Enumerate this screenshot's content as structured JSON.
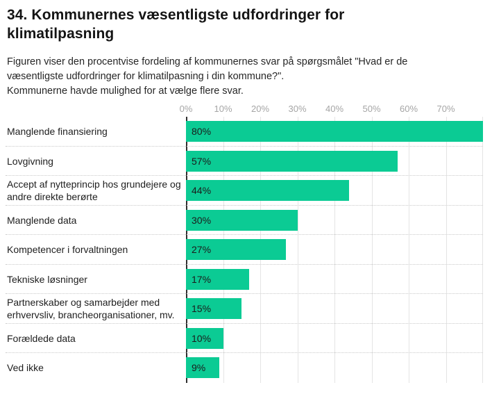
{
  "header": {
    "title_lines": [
      "34. Kommunernes væsentligste udfordringer for",
      "klimatilpasning"
    ],
    "description_lines": [
      "Figuren viser den procentvise fordeling af kommunernes svar på spørgsmålet \"Hvad er de",
      "væsentligste udfordringer for klimatilpasning i din kommune?\".",
      "Kommunerne havde mulighed for at vælge flere svar."
    ]
  },
  "chart_data": {
    "type": "bar",
    "orientation": "horizontal",
    "title": "34. Kommunernes væsentligste udfordringer for klimatilpasning",
    "categories": [
      "Manglende finansiering",
      "Lovgivning",
      "Accept af nytteprincip hos grundejere og andre direkte berørte",
      "Manglende data",
      "Kompetencer i forvaltningen",
      "Tekniske løsninger",
      "Partnerskaber og samarbejder med erhvervsliv, brancheorganisationer, mv.",
      "Forældede data",
      "Ved ikke"
    ],
    "category_display_lines": [
      [
        "Manglende finansiering"
      ],
      [
        "Lovgivning"
      ],
      [
        "Accept af nytteprincip hos grundejere og",
        "andre direkte berørte"
      ],
      [
        "Manglende data"
      ],
      [
        "Kompetencer i forvaltningen"
      ],
      [
        "Tekniske løsninger"
      ],
      [
        "Partnerskaber og samarbejder med",
        "erhvervsliv, brancheorganisationer, mv."
      ],
      [
        "Forældede data"
      ],
      [
        "Ved ikke"
      ]
    ],
    "values": [
      80,
      57,
      44,
      30,
      27,
      17,
      15,
      10,
      9
    ],
    "value_labels": [
      "80%",
      "57%",
      "44%",
      "30%",
      "27%",
      "17%",
      "15%",
      "10%",
      "9%"
    ],
    "unit": "%",
    "axis": {
      "ticks": [
        "0%",
        "10%",
        "20%",
        "30%",
        "40%",
        "50%",
        "60%",
        "70%"
      ],
      "range": [
        0,
        80
      ],
      "grid": true
    },
    "legend": "none",
    "bar_color": "#0bcb94",
    "tick_color": "#a5a5a5",
    "axis_line_color": "#2e2e2e"
  }
}
